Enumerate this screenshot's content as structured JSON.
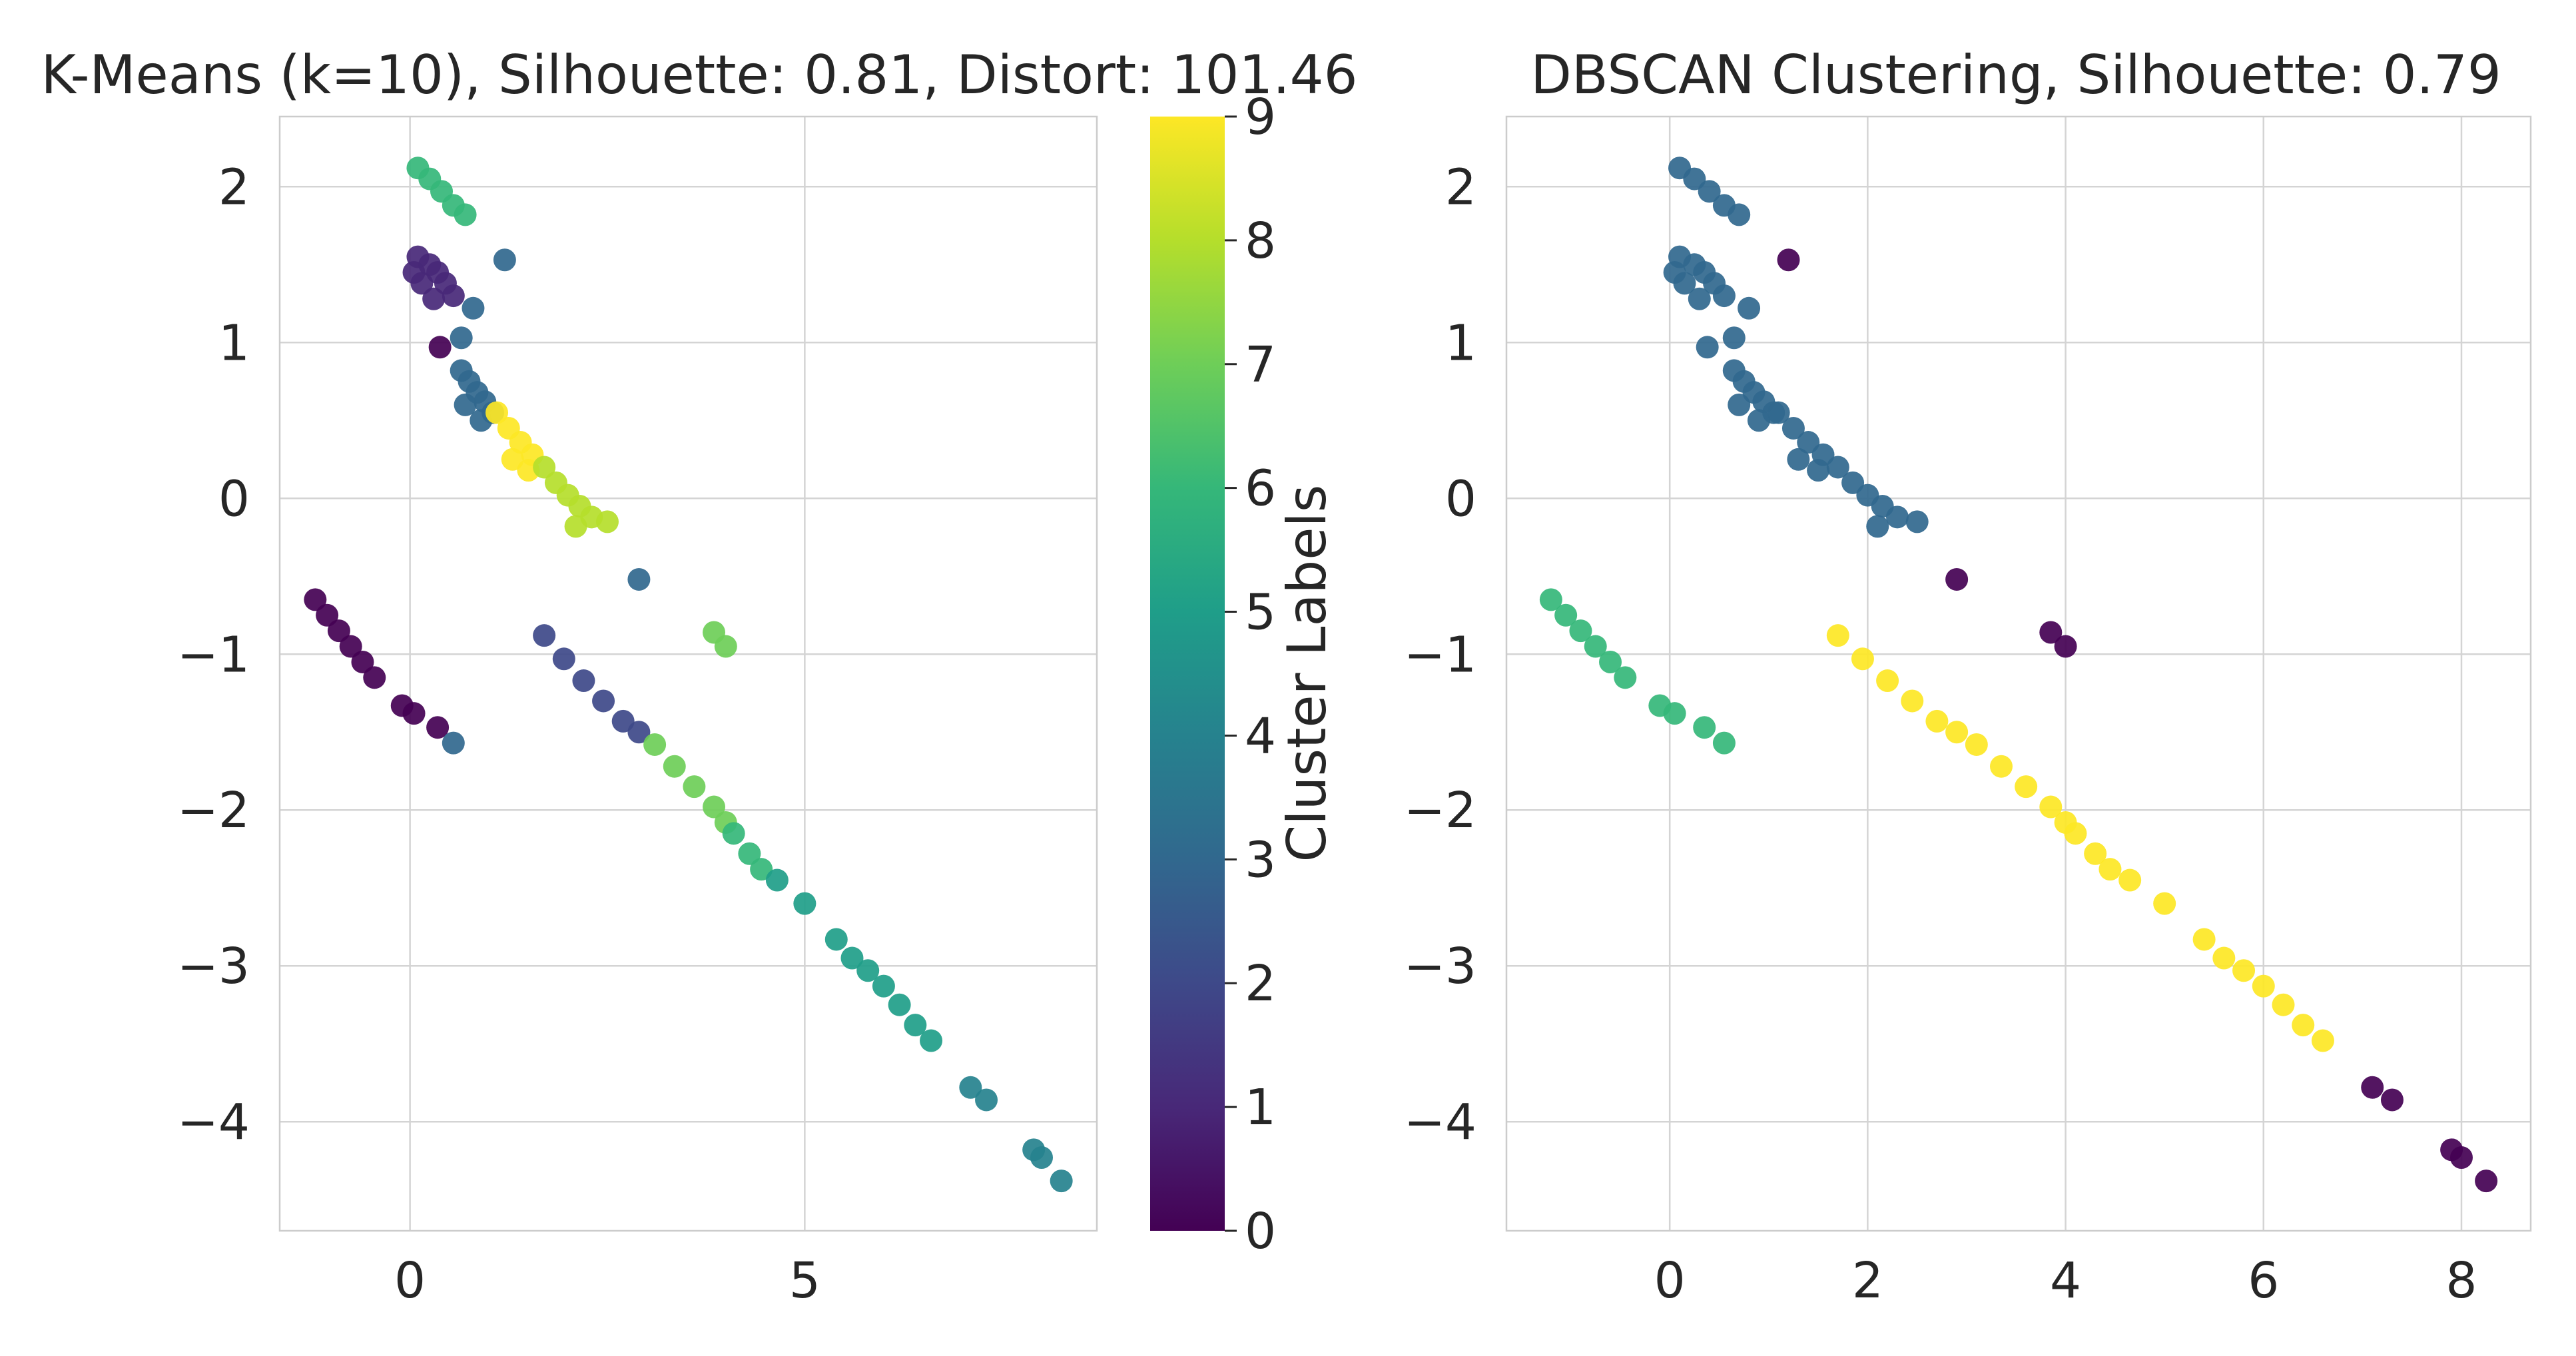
{
  "chart_data": [
    {
      "type": "scatter",
      "title": "K-Means (k=10), Silhouette: 0.81, Distort: 101.46",
      "xlabel": "",
      "ylabel": "",
      "xlim": [
        -1.65,
        8.7
      ],
      "ylim": [
        -4.7,
        2.45
      ],
      "xticks": [
        0,
        5
      ],
      "yticks": [
        2,
        1,
        0,
        -1,
        -2,
        -3,
        -4
      ],
      "xtick_labels": [
        "0",
        "5"
      ],
      "ytick_labels": [
        "2",
        "1",
        "0",
        "−1",
        "−2",
        "−3",
        "−4"
      ],
      "grid": true,
      "colormap": "viridis",
      "colorbar": {
        "label": "Cluster Labels",
        "range": [
          0,
          9
        ],
        "ticks": [
          0,
          1,
          2,
          3,
          4,
          5,
          6,
          7,
          8,
          9
        ],
        "tick_labels": [
          "0",
          "1",
          "2",
          "3",
          "4",
          "5",
          "6",
          "7",
          "8",
          "9"
        ]
      },
      "points": [
        {
          "x": 0.1,
          "y": 2.12,
          "label": 6
        },
        {
          "x": 0.25,
          "y": 2.05,
          "label": 6
        },
        {
          "x": 0.4,
          "y": 1.97,
          "label": 6
        },
        {
          "x": 0.55,
          "y": 1.88,
          "label": 6
        },
        {
          "x": 0.7,
          "y": 1.82,
          "label": 6
        },
        {
          "x": 0.05,
          "y": 1.45,
          "label": 1
        },
        {
          "x": 0.1,
          "y": 1.55,
          "label": 1
        },
        {
          "x": 0.15,
          "y": 1.38,
          "label": 1
        },
        {
          "x": 0.25,
          "y": 1.5,
          "label": 1
        },
        {
          "x": 0.3,
          "y": 1.28,
          "label": 1
        },
        {
          "x": 0.35,
          "y": 1.45,
          "label": 1
        },
        {
          "x": 0.45,
          "y": 1.38,
          "label": 1
        },
        {
          "x": 0.55,
          "y": 1.3,
          "label": 1
        },
        {
          "x": 1.2,
          "y": 1.53,
          "label": 3
        },
        {
          "x": 0.8,
          "y": 1.22,
          "label": 3
        },
        {
          "x": 0.65,
          "y": 1.03,
          "label": 3
        },
        {
          "x": 0.38,
          "y": 0.97,
          "label": 0
        },
        {
          "x": 0.65,
          "y": 0.82,
          "label": 3
        },
        {
          "x": 0.75,
          "y": 0.75,
          "label": 3
        },
        {
          "x": 0.85,
          "y": 0.68,
          "label": 3
        },
        {
          "x": 0.95,
          "y": 0.62,
          "label": 3
        },
        {
          "x": 1.05,
          "y": 0.55,
          "label": 3
        },
        {
          "x": 0.7,
          "y": 0.6,
          "label": 3
        },
        {
          "x": 0.9,
          "y": 0.5,
          "label": 3
        },
        {
          "x": 1.1,
          "y": 0.55,
          "label": 9
        },
        {
          "x": 1.25,
          "y": 0.45,
          "label": 9
        },
        {
          "x": 1.4,
          "y": 0.36,
          "label": 9
        },
        {
          "x": 1.55,
          "y": 0.28,
          "label": 9
        },
        {
          "x": 1.3,
          "y": 0.25,
          "label": 9
        },
        {
          "x": 1.5,
          "y": 0.18,
          "label": 9
        },
        {
          "x": 1.7,
          "y": 0.2,
          "label": 8
        },
        {
          "x": 1.85,
          "y": 0.1,
          "label": 8
        },
        {
          "x": 2.0,
          "y": 0.02,
          "label": 8
        },
        {
          "x": 2.15,
          "y": -0.05,
          "label": 8
        },
        {
          "x": 2.3,
          "y": -0.12,
          "label": 8
        },
        {
          "x": 2.5,
          "y": -0.15,
          "label": 8
        },
        {
          "x": 2.1,
          "y": -0.18,
          "label": 8
        },
        {
          "x": 2.9,
          "y": -0.52,
          "label": 3
        },
        {
          "x": 3.85,
          "y": -0.86,
          "label": 7
        },
        {
          "x": 4.0,
          "y": -0.95,
          "label": 7
        },
        {
          "x": -1.2,
          "y": -0.65,
          "label": 0
        },
        {
          "x": -1.05,
          "y": -0.75,
          "label": 0
        },
        {
          "x": -0.9,
          "y": -0.85,
          "label": 0
        },
        {
          "x": -0.75,
          "y": -0.95,
          "label": 0
        },
        {
          "x": -0.6,
          "y": -1.05,
          "label": 0
        },
        {
          "x": -0.45,
          "y": -1.15,
          "label": 0
        },
        {
          "x": -0.1,
          "y": -1.33,
          "label": 0
        },
        {
          "x": 0.05,
          "y": -1.38,
          "label": 0
        },
        {
          "x": 0.35,
          "y": -1.47,
          "label": 0
        },
        {
          "x": 0.55,
          "y": -1.57,
          "label": 3
        },
        {
          "x": 1.7,
          "y": -0.88,
          "label": 2
        },
        {
          "x": 1.95,
          "y": -1.03,
          "label": 2
        },
        {
          "x": 2.2,
          "y": -1.17,
          "label": 2
        },
        {
          "x": 2.45,
          "y": -1.3,
          "label": 2
        },
        {
          "x": 2.7,
          "y": -1.43,
          "label": 2
        },
        {
          "x": 2.9,
          "y": -1.5,
          "label": 2
        },
        {
          "x": 3.1,
          "y": -1.58,
          "label": 7
        },
        {
          "x": 3.35,
          "y": -1.72,
          "label": 7
        },
        {
          "x": 3.6,
          "y": -1.85,
          "label": 7
        },
        {
          "x": 3.85,
          "y": -1.98,
          "label": 7
        },
        {
          "x": 4.0,
          "y": -2.08,
          "label": 7
        },
        {
          "x": 4.1,
          "y": -2.15,
          "label": 6
        },
        {
          "x": 4.3,
          "y": -2.28,
          "label": 6
        },
        {
          "x": 4.45,
          "y": -2.38,
          "label": 6
        },
        {
          "x": 4.65,
          "y": -2.45,
          "label": 5
        },
        {
          "x": 5.0,
          "y": -2.6,
          "label": 5
        },
        {
          "x": 5.4,
          "y": -2.83,
          "label": 5
        },
        {
          "x": 5.6,
          "y": -2.95,
          "label": 5
        },
        {
          "x": 5.8,
          "y": -3.03,
          "label": 5
        },
        {
          "x": 6.0,
          "y": -3.13,
          "label": 5
        },
        {
          "x": 6.2,
          "y": -3.25,
          "label": 5
        },
        {
          "x": 6.4,
          "y": -3.38,
          "label": 5
        },
        {
          "x": 6.6,
          "y": -3.48,
          "label": 5
        },
        {
          "x": 7.1,
          "y": -3.78,
          "label": 4
        },
        {
          "x": 7.3,
          "y": -3.86,
          "label": 4
        },
        {
          "x": 7.9,
          "y": -4.18,
          "label": 4
        },
        {
          "x": 8.0,
          "y": -4.23,
          "label": 4
        },
        {
          "x": 8.25,
          "y": -4.38,
          "label": 4
        }
      ]
    },
    {
      "type": "scatter",
      "title": "DBSCAN Clustering, Silhouette: 0.79",
      "xlabel": "",
      "ylabel": "",
      "xlim": [
        -1.65,
        8.7
      ],
      "ylim": [
        -4.7,
        2.45
      ],
      "xticks": [
        0,
        2,
        4,
        6,
        8
      ],
      "yticks": [
        2,
        1,
        0,
        -1,
        -2,
        -3,
        -4
      ],
      "xtick_labels": [
        "0",
        "2",
        "4",
        "6",
        "8"
      ],
      "ytick_labels": [
        "2",
        "1",
        "0",
        "−1",
        "−2",
        "−3",
        "−4"
      ],
      "grid": true,
      "colormap": "viridis",
      "label_range": [
        0,
        3
      ],
      "points": [
        {
          "x": 0.1,
          "y": 2.12,
          "label": 1
        },
        {
          "x": 0.25,
          "y": 2.05,
          "label": 1
        },
        {
          "x": 0.4,
          "y": 1.97,
          "label": 1
        },
        {
          "x": 0.55,
          "y": 1.88,
          "label": 1
        },
        {
          "x": 0.7,
          "y": 1.82,
          "label": 1
        },
        {
          "x": 0.05,
          "y": 1.45,
          "label": 1
        },
        {
          "x": 0.1,
          "y": 1.55,
          "label": 1
        },
        {
          "x": 0.15,
          "y": 1.38,
          "label": 1
        },
        {
          "x": 0.25,
          "y": 1.5,
          "label": 1
        },
        {
          "x": 0.3,
          "y": 1.28,
          "label": 1
        },
        {
          "x": 0.35,
          "y": 1.45,
          "label": 1
        },
        {
          "x": 0.45,
          "y": 1.38,
          "label": 1
        },
        {
          "x": 0.55,
          "y": 1.3,
          "label": 1
        },
        {
          "x": 1.2,
          "y": 1.53,
          "label": 0
        },
        {
          "x": 0.8,
          "y": 1.22,
          "label": 1
        },
        {
          "x": 0.65,
          "y": 1.03,
          "label": 1
        },
        {
          "x": 0.38,
          "y": 0.97,
          "label": 1
        },
        {
          "x": 0.65,
          "y": 0.82,
          "label": 1
        },
        {
          "x": 0.75,
          "y": 0.75,
          "label": 1
        },
        {
          "x": 0.85,
          "y": 0.68,
          "label": 1
        },
        {
          "x": 0.95,
          "y": 0.62,
          "label": 1
        },
        {
          "x": 1.05,
          "y": 0.55,
          "label": 1
        },
        {
          "x": 0.7,
          "y": 0.6,
          "label": 1
        },
        {
          "x": 0.9,
          "y": 0.5,
          "label": 1
        },
        {
          "x": 1.1,
          "y": 0.55,
          "label": 1
        },
        {
          "x": 1.25,
          "y": 0.45,
          "label": 1
        },
        {
          "x": 1.4,
          "y": 0.36,
          "label": 1
        },
        {
          "x": 1.55,
          "y": 0.28,
          "label": 1
        },
        {
          "x": 1.3,
          "y": 0.25,
          "label": 1
        },
        {
          "x": 1.5,
          "y": 0.18,
          "label": 1
        },
        {
          "x": 1.7,
          "y": 0.2,
          "label": 1
        },
        {
          "x": 1.85,
          "y": 0.1,
          "label": 1
        },
        {
          "x": 2.0,
          "y": 0.02,
          "label": 1
        },
        {
          "x": 2.15,
          "y": -0.05,
          "label": 1
        },
        {
          "x": 2.3,
          "y": -0.12,
          "label": 1
        },
        {
          "x": 2.5,
          "y": -0.15,
          "label": 1
        },
        {
          "x": 2.1,
          "y": -0.18,
          "label": 1
        },
        {
          "x": 2.9,
          "y": -0.52,
          "label": 0
        },
        {
          "x": 3.85,
          "y": -0.86,
          "label": 0
        },
        {
          "x": 4.0,
          "y": -0.95,
          "label": 0
        },
        {
          "x": -1.2,
          "y": -0.65,
          "label": 2
        },
        {
          "x": -1.05,
          "y": -0.75,
          "label": 2
        },
        {
          "x": -0.9,
          "y": -0.85,
          "label": 2
        },
        {
          "x": -0.75,
          "y": -0.95,
          "label": 2
        },
        {
          "x": -0.6,
          "y": -1.05,
          "label": 2
        },
        {
          "x": -0.45,
          "y": -1.15,
          "label": 2
        },
        {
          "x": -0.1,
          "y": -1.33,
          "label": 2
        },
        {
          "x": 0.05,
          "y": -1.38,
          "label": 2
        },
        {
          "x": 0.35,
          "y": -1.47,
          "label": 2
        },
        {
          "x": 0.55,
          "y": -1.57,
          "label": 2
        },
        {
          "x": 1.7,
          "y": -0.88,
          "label": 3
        },
        {
          "x": 1.95,
          "y": -1.03,
          "label": 3
        },
        {
          "x": 2.2,
          "y": -1.17,
          "label": 3
        },
        {
          "x": 2.45,
          "y": -1.3,
          "label": 3
        },
        {
          "x": 2.7,
          "y": -1.43,
          "label": 3
        },
        {
          "x": 2.9,
          "y": -1.5,
          "label": 3
        },
        {
          "x": 3.1,
          "y": -1.58,
          "label": 3
        },
        {
          "x": 3.35,
          "y": -1.72,
          "label": 3
        },
        {
          "x": 3.6,
          "y": -1.85,
          "label": 3
        },
        {
          "x": 3.85,
          "y": -1.98,
          "label": 3
        },
        {
          "x": 4.0,
          "y": -2.08,
          "label": 3
        },
        {
          "x": 4.1,
          "y": -2.15,
          "label": 3
        },
        {
          "x": 4.3,
          "y": -2.28,
          "label": 3
        },
        {
          "x": 4.45,
          "y": -2.38,
          "label": 3
        },
        {
          "x": 4.65,
          "y": -2.45,
          "label": 3
        },
        {
          "x": 5.0,
          "y": -2.6,
          "label": 3
        },
        {
          "x": 5.4,
          "y": -2.83,
          "label": 3
        },
        {
          "x": 5.6,
          "y": -2.95,
          "label": 3
        },
        {
          "x": 5.8,
          "y": -3.03,
          "label": 3
        },
        {
          "x": 6.0,
          "y": -3.13,
          "label": 3
        },
        {
          "x": 6.2,
          "y": -3.25,
          "label": 3
        },
        {
          "x": 6.4,
          "y": -3.38,
          "label": 3
        },
        {
          "x": 6.6,
          "y": -3.48,
          "label": 3
        },
        {
          "x": 7.1,
          "y": -3.78,
          "label": 0
        },
        {
          "x": 7.3,
          "y": -3.86,
          "label": 0
        },
        {
          "x": 7.9,
          "y": -4.18,
          "label": 0
        },
        {
          "x": 8.0,
          "y": -4.23,
          "label": 0
        },
        {
          "x": 8.25,
          "y": -4.38,
          "label": 0
        }
      ]
    }
  ]
}
